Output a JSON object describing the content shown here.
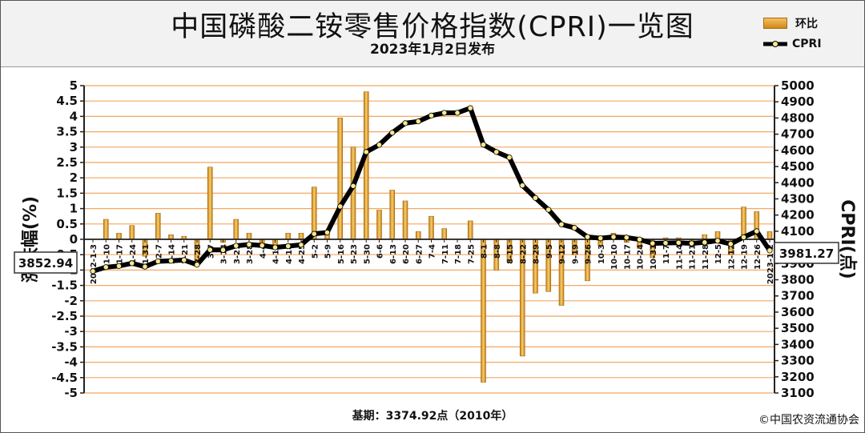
{
  "header": {
    "title": "中国磷酸二铵零售价格指数(CPRI)一览图",
    "subtitle": "2023年1月2日发布"
  },
  "legend": {
    "bar_label": "环比",
    "line_label": "CPRI"
  },
  "footer": {
    "base": "基期：3374.92点（2010年）",
    "copyright": "©中国农资流通协会"
  },
  "callouts": {
    "start": "3852.94",
    "end": "3981.27"
  },
  "colors": {
    "bar": "#e8a830",
    "bar_edge": "#a86a10",
    "grid": "#f5a860",
    "line": "#000000",
    "marker": "#f5e890"
  },
  "chart_data": {
    "type": "bar+line",
    "x": [
      "2022-1-3",
      "1-10",
      "1-17",
      "1-24",
      "1-31",
      "2-7",
      "2-14",
      "2-21",
      "2-28",
      "3-7",
      "3-14",
      "3-21",
      "3-28",
      "4-4",
      "4-11",
      "4-18",
      "4-25",
      "5-2",
      "5-9",
      "5-16",
      "5-23",
      "5-30",
      "6-6",
      "6-13",
      "6-20",
      "6-27",
      "7-4",
      "7-11",
      "7-18",
      "7-25",
      "8-1",
      "8-8",
      "8-15",
      "8-22",
      "8-29",
      "9-5",
      "9-12",
      "9-19",
      "9-26",
      "10-3",
      "10-10",
      "10-17",
      "10-24",
      "10-31",
      "11-7",
      "11-14",
      "11-21",
      "11-28",
      "12-5",
      "12-12",
      "12-19",
      "12-26",
      "2023-1-2"
    ],
    "series": [
      {
        "name": "环比",
        "type": "bar",
        "axis": "left",
        "values": [
          0,
          0.65,
          0.2,
          0.45,
          -0.55,
          0.85,
          0.15,
          0.1,
          -0.75,
          2.35,
          -0.1,
          0.65,
          0.2,
          -0.15,
          -0.3,
          0.2,
          0.2,
          1.7,
          0.2,
          3.95,
          3.0,
          4.8,
          0.95,
          1.6,
          1.25,
          0.25,
          0.75,
          0.35,
          0,
          0.6,
          -4.65,
          -1.0,
          -0.75,
          -3.8,
          -1.75,
          -1.7,
          -2.15,
          -0.5,
          -1.35,
          -0.2,
          0.2,
          -0.1,
          -0.3,
          -0.6,
          0.05,
          0.05,
          -0.1,
          0.15,
          0.25,
          -0.5,
          1.05,
          0.9,
          0.25
        ]
      },
      {
        "name": "CPRI",
        "type": "line",
        "axis": "right",
        "values": [
          3852.94,
          3878,
          3885,
          3902,
          3881,
          3914,
          3917,
          3922,
          3893,
          3985,
          3984,
          4010,
          4018,
          4012,
          4000,
          4008,
          4016,
          4084,
          4092,
          4253,
          4380,
          4590,
          4634,
          4709,
          4768,
          4779,
          4815,
          4832,
          4832,
          4861,
          4635,
          4590,
          4556,
          4383,
          4306,
          4233,
          4142,
          4121,
          4065,
          4057,
          4065,
          4061,
          4049,
          4025,
          4027,
          4029,
          4025,
          4031,
          4041,
          4021,
          4063,
          4100,
          3981.27
        ]
      }
    ],
    "xlabel": "",
    "ylabel_left": "涨跌幅(%)",
    "ylabel_right": "CPRI(点)",
    "ylim_left": [
      -5,
      5
    ],
    "ylim_right": [
      3100,
      5000
    ],
    "yticks_left": [
      "5",
      "4.5",
      "4",
      "3.5",
      "3",
      "2.5",
      "2",
      "1.5",
      "1",
      "0.5",
      "0",
      "-0.5",
      "-1",
      "-1.5",
      "-2",
      "-2.5",
      "-3",
      "-3.5",
      "-4",
      "-4.5",
      "-5"
    ],
    "yticks_right": [
      "5000",
      "4900",
      "4800",
      "4700",
      "4600",
      "4500",
      "4400",
      "4300",
      "4200",
      "4100",
      "4000",
      "3900",
      "3800",
      "3700",
      "3600",
      "3500",
      "3400",
      "3300",
      "3200",
      "3100"
    ],
    "grid": true
  }
}
